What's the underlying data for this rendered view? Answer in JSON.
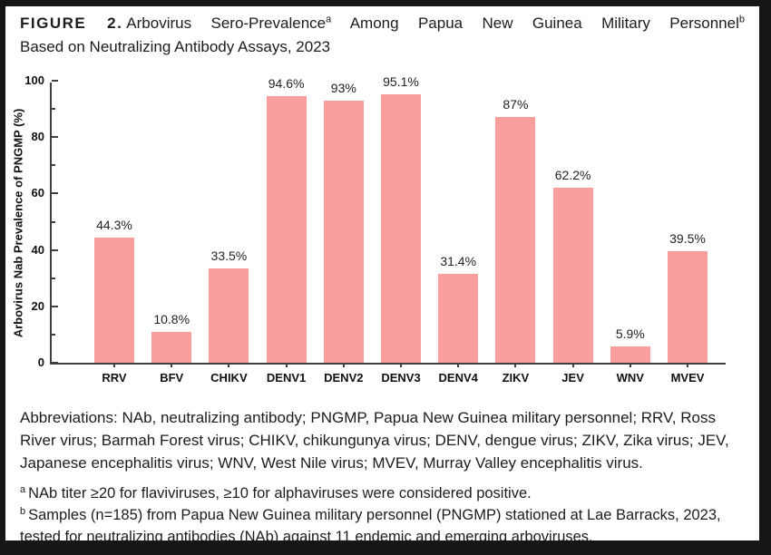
{
  "figure": {
    "label": "FIGURE 2.",
    "title_seg1": "Arbovirus Sero-Prevalence",
    "title_sup1": "a",
    "title_seg2": "Among Papua New Guinea Military Personnel",
    "title_sup2": "b",
    "title_line2": "Based on Neutralizing Antibody Assays, 2023"
  },
  "chart_data": {
    "type": "bar",
    "categories": [
      "RRV",
      "BFV",
      "CHIKV",
      "DENV1",
      "DENV2",
      "DENV3",
      "DENV4",
      "ZIKV",
      "JEV",
      "WNV",
      "MVEV"
    ],
    "values": [
      44.3,
      10.8,
      33.5,
      94.6,
      93,
      95.1,
      31.4,
      87,
      62.2,
      5.9,
      39.5
    ],
    "value_labels": [
      "44.3%",
      "10.8%",
      "33.5%",
      "94.6%",
      "93%",
      "95.1%",
      "31.4%",
      "87%",
      "62.2%",
      "5.9%",
      "39.5%"
    ],
    "title": "",
    "xlabel": "",
    "ylabel": "Arbovirus Nab Prevalence of PNGMP (%)",
    "ylim": [
      0,
      100
    ],
    "yticks": [
      0,
      20,
      40,
      60,
      80,
      100
    ],
    "minor_yticks": [
      10,
      30,
      50,
      70,
      90
    ],
    "bar_color": "#FB9E9E",
    "axis_color": "#3f3f3f",
    "grid": false,
    "legend_position": "none"
  },
  "abbreviations": "Abbreviations: NAb, neutralizing antibody; PNGMP, Papua New Guinea military personnel; RRV, Ross River virus; Barmah Forest virus; CHIKV, chikungunya virus; DENV, dengue virus; ZIKV, Zika virus; JEV, Japanese encephalitis virus; WNV, West Nile virus; MVEV, Murray Valley encephalitis virus.",
  "footnotes": [
    {
      "marker": "a",
      "text": "NAb titer ≥20 for flaviviruses, ≥10 for alphaviruses were considered positive."
    },
    {
      "marker": "b",
      "text": "Samples (n=185) from Papua New Guinea military personnel (PNGMP) stationed at Lae Barracks, 2023, tested for neutralizing antibodies (NAb) against 11 endemic and emerging arboviruses."
    }
  ]
}
